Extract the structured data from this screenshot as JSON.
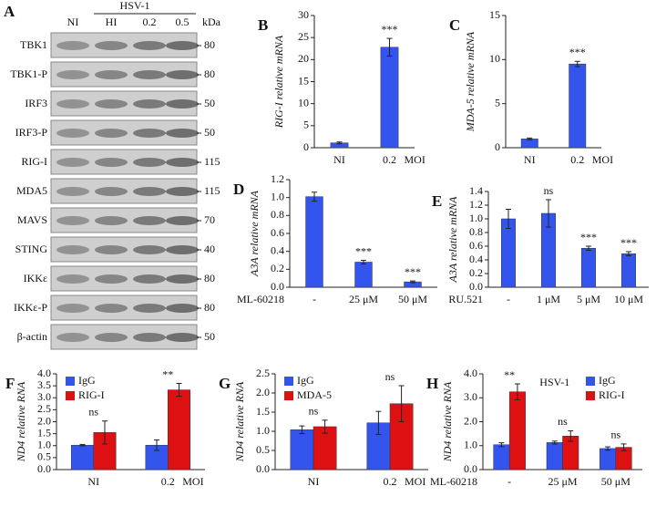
{
  "blot": {
    "panel": "A",
    "group": "HSV-1",
    "lanes": [
      "NI",
      "HI",
      "0.2",
      "0.5"
    ],
    "unit": "kDa",
    "rows": [
      {
        "name": "TBK1",
        "kda": 80
      },
      {
        "name": "TBK1-P",
        "kda": 80
      },
      {
        "name": "IRF3",
        "kda": 50
      },
      {
        "name": "IRF3-P",
        "kda": 50
      },
      {
        "name": "RIG-I",
        "kda": 115
      },
      {
        "name": "MDA5",
        "kda": 115
      },
      {
        "name": "MAVS",
        "kda": 70
      },
      {
        "name": "STING",
        "kda": 40
      },
      {
        "name": "IKKε",
        "kda": 80
      },
      {
        "name": "IKKε-P",
        "kda": 80
      },
      {
        "name": "β-actin",
        "kda": 50
      }
    ]
  },
  "chart_data": [
    {
      "type": "bar",
      "panel": "B",
      "ylabel": "RIG-I relative mRNA",
      "categories": [
        "NI",
        "0.2"
      ],
      "xlabel": "MOI",
      "xlabel_side": "right",
      "values": [
        1.1,
        22.8
      ],
      "errors": [
        0.2,
        2.0
      ],
      "color": "#3355ee",
      "annotations": [
        null,
        "***"
      ],
      "ylim": [
        0,
        30
      ],
      "yticks": [
        0,
        5,
        10,
        15,
        20,
        25,
        30
      ]
    },
    {
      "type": "bar",
      "panel": "C",
      "ylabel": "MDA-5 relative mRNA",
      "categories": [
        "NI",
        "0.2"
      ],
      "xlabel": "MOI",
      "xlabel_side": "right",
      "values": [
        1.0,
        9.5
      ],
      "errors": [
        0.1,
        0.3
      ],
      "color": "#3355ee",
      "annotations": [
        null,
        "***"
      ],
      "ylim": [
        0,
        15
      ],
      "yticks": [
        0,
        5,
        10,
        15
      ]
    },
    {
      "type": "bar",
      "panel": "D",
      "ylabel": "A3A relative mRNA",
      "categories": [
        "-",
        "25 μM",
        "50 μM"
      ],
      "xlabel": "ML-60218",
      "xlabel_side": "left",
      "values": [
        1.01,
        0.28,
        0.06
      ],
      "errors": [
        0.05,
        0.02,
        0.01
      ],
      "color": "#3355ee",
      "annotations": [
        null,
        "***",
        "***"
      ],
      "ylim": [
        0,
        1.2
      ],
      "yticks": [
        {
          "value": 0,
          "label": "0.0"
        },
        0.2,
        0.4,
        0.6,
        0.8,
        {
          "value": 1,
          "label": "1.0"
        },
        1.2
      ]
    },
    {
      "type": "bar",
      "panel": "E",
      "ylabel": "A3A relative mRNA",
      "categories": [
        "-",
        "1 μM",
        "5 μM",
        "10 μM"
      ],
      "xlabel": "RU.521",
      "xlabel_side": "left",
      "values": [
        1.0,
        1.08,
        0.57,
        0.49
      ],
      "errors": [
        0.14,
        0.2,
        0.03,
        0.03
      ],
      "color": "#3355ee",
      "annotations": [
        null,
        "ns",
        "***",
        "***"
      ],
      "ylim": [
        0,
        1.4
      ],
      "yticks": [
        {
          "value": 0,
          "label": "0.0"
        },
        0.2,
        0.4,
        0.6,
        0.8,
        {
          "value": 1,
          "label": "1.0"
        },
        1.2,
        1.4
      ]
    },
    {
      "type": "bar",
      "panel": "F",
      "ylabel": "ND4 relative RNA",
      "categories": [
        "NI",
        "0.2"
      ],
      "xlabel": "MOI",
      "xlabel_side": "right",
      "legend": "upper left",
      "series": [
        {
          "name": "IgG",
          "color": "#3355ee",
          "values": [
            1.02,
            1.02
          ],
          "errors": [
            0.03,
            0.22
          ]
        },
        {
          "name": "RIG-I",
          "color": "#dd1111",
          "values": [
            1.55,
            3.33
          ],
          "errors": [
            0.48,
            0.27
          ]
        }
      ],
      "annotations": [
        "ns",
        "**"
      ],
      "ylim": [
        0,
        4
      ],
      "yticks": [
        {
          "value": 0,
          "label": "0.0"
        },
        0.5,
        {
          "value": 1,
          "label": "1.0"
        },
        1.5,
        {
          "value": 2,
          "label": "2.0"
        },
        2.5,
        {
          "value": 3,
          "label": "3.0"
        },
        3.5,
        {
          "value": 4,
          "label": "4.0"
        }
      ]
    },
    {
      "type": "bar",
      "panel": "G",
      "ylabel": "ND4 relative RNA",
      "categories": [
        "NI",
        "0.2"
      ],
      "xlabel": "MOI",
      "xlabel_side": "right",
      "legend": "upper left",
      "series": [
        {
          "name": "IgG",
          "color": "#3355ee",
          "values": [
            1.04,
            1.22
          ],
          "errors": [
            0.1,
            0.3
          ]
        },
        {
          "name": "MDA-5",
          "color": "#dd1111",
          "values": [
            1.12,
            1.72
          ],
          "errors": [
            0.17,
            0.47
          ]
        }
      ],
      "annotations": [
        "ns",
        "ns"
      ],
      "ylim": [
        0,
        2.5
      ],
      "yticks": [
        {
          "value": 0,
          "label": "0.0"
        },
        0.5,
        {
          "value": 1,
          "label": "1.0"
        },
        1.5,
        {
          "value": 2,
          "label": "2.0"
        },
        2.5
      ]
    },
    {
      "type": "bar",
      "panel": "H",
      "ylabel": "ND4 relative RNA",
      "subtitle": "HSV-1",
      "categories": [
        "-",
        "25 μM",
        "50 μM"
      ],
      "xlabel": "ML-60218",
      "xlabel_side": "left",
      "legend": "upper right",
      "series": [
        {
          "name": "IgG",
          "color": "#3355ee",
          "values": [
            1.04,
            1.13,
            0.88
          ],
          "errors": [
            0.08,
            0.06,
            0.07
          ]
        },
        {
          "name": "RIG-I",
          "color": "#dd1111",
          "values": [
            3.25,
            1.4,
            0.93
          ],
          "errors": [
            0.33,
            0.22,
            0.14
          ]
        }
      ],
      "annotations": [
        "**",
        "ns",
        "ns"
      ],
      "ylim": [
        0,
        4
      ],
      "yticks": [
        {
          "value": 0,
          "label": "0.0"
        },
        {
          "value": 1,
          "label": "1.0"
        },
        {
          "value": 2,
          "label": "2.0"
        },
        {
          "value": 3,
          "label": "3.0"
        },
        {
          "value": 4,
          "label": "4.0"
        }
      ]
    }
  ]
}
